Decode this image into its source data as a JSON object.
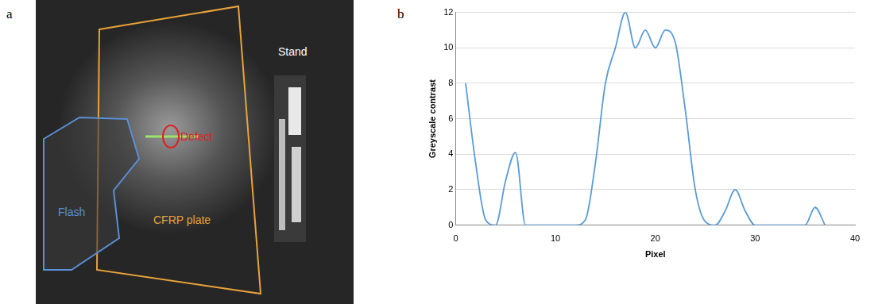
{
  "figure": {
    "panel_a": {
      "letter": "a",
      "labels": {
        "flash": "Flash",
        "plate": "CFRP plate",
        "defect": "Defect",
        "stand": "Stand"
      }
    },
    "panel_b": {
      "letter": "b"
    }
  },
  "chart_data": {
    "type": "line",
    "x_label": "Pixel",
    "y_label": "Greyscale contrast",
    "x": [
      1,
      2,
      3,
      4,
      5,
      6,
      7,
      8,
      9,
      10,
      11,
      12,
      13,
      14,
      15,
      16,
      17,
      18,
      19,
      20,
      21,
      22,
      23,
      24,
      25,
      26,
      27,
      28,
      29,
      30,
      31,
      32,
      33,
      34,
      35,
      36,
      37
    ],
    "values": [
      8,
      3.5,
      0.3,
      0,
      2.5,
      4.1,
      0,
      0,
      0,
      0,
      0,
      0,
      0.3,
      3.5,
      8,
      10,
      12,
      10,
      11,
      10,
      11,
      10.3,
      6.5,
      2,
      0.2,
      0,
      0.8,
      2,
      0.8,
      0,
      0,
      0,
      0,
      0,
      0,
      1,
      0
    ],
    "color": "#5b9bd5",
    "xlim": [
      0,
      40
    ],
    "xticks": [
      0,
      10,
      20,
      30,
      40
    ],
    "ylim": [
      0,
      12
    ],
    "yticks": [
      0,
      2,
      4,
      6,
      8,
      10,
      12
    ],
    "grid": true
  }
}
